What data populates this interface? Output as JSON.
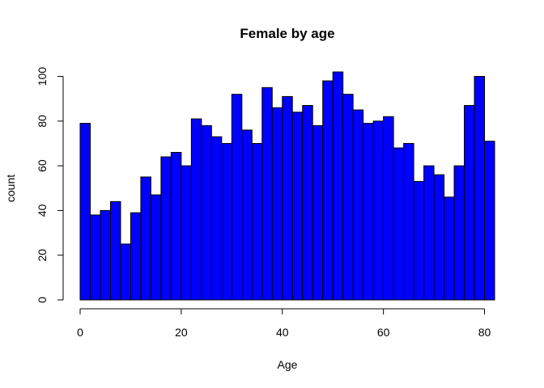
{
  "chart_data": {
    "type": "bar",
    "title": "Female by age",
    "xlabel": "Age",
    "ylabel": "count",
    "bin_width": 2,
    "x_start": 0,
    "xlim": [
      0,
      82
    ],
    "ylim": [
      0,
      102
    ],
    "x_ticks": [
      0,
      20,
      40,
      60,
      80
    ],
    "y_ticks": [
      0,
      20,
      40,
      60,
      80,
      100
    ],
    "values": [
      79,
      38,
      40,
      44,
      25,
      39,
      55,
      47,
      64,
      66,
      60,
      81,
      78,
      73,
      70,
      92,
      76,
      70,
      95,
      86,
      91,
      84,
      87,
      78,
      98,
      102,
      92,
      85,
      79,
      80,
      82,
      68,
      70,
      53,
      60,
      56,
      46,
      60,
      87,
      100,
      71
    ],
    "bar_color": "#0000ff",
    "border_color": "#000000",
    "grid": false,
    "legend": "none"
  }
}
